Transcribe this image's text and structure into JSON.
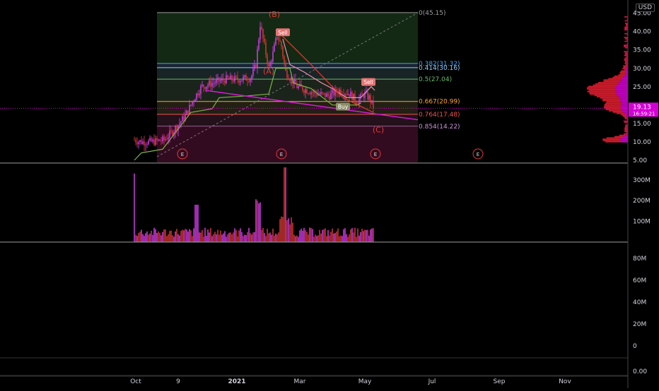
{
  "currency": "USD",
  "colors": {
    "bg": "#000000",
    "up": "#e040fb",
    "down": "#e53935",
    "fib_line": "#555555",
    "price_tag": "#d600d6",
    "volume_profile_red": "#cc1a2a",
    "volume_profile_magenta": "#c000c0"
  },
  "chart_data": [
    {
      "type": "candlestick",
      "x_labels": [
        "Oct",
        "9",
        "2021",
        "Mar",
        "May",
        "Jul",
        "Sep",
        "Nov"
      ],
      "y_ticks": [
        "45.00",
        "40.00",
        "35.00",
        "30.00",
        "25.00",
        "20.00",
        "15.00",
        "10.00",
        "5.00"
      ],
      "y_values": [
        45,
        40,
        35,
        30,
        25,
        20,
        15,
        10,
        5
      ],
      "ylim": [
        5,
        45
      ],
      "last_price": "19.13",
      "last_price_value": 19.13,
      "countdown": "16:59:21",
      "fib_levels": [
        {
          "label": "0(45.15)",
          "value": 45.15,
          "color": "#9e9e9e"
        },
        {
          "label": "0.382(31.32)",
          "value": 31.32,
          "color": "#42a5f5"
        },
        {
          "label": "0.414(30.16)",
          "value": 30.16,
          "color": "#90caf9"
        },
        {
          "label": "0.5(27.04)",
          "value": 27.04,
          "color": "#66bb6a"
        },
        {
          "label": "0.667(20.99)",
          "value": 20.99,
          "color": "#ffa726"
        },
        {
          "label": "0.764(17.48)",
          "value": 17.48,
          "color": "#ef5350"
        },
        {
          "label": "0.854(14.22)",
          "value": 14.22,
          "color": "#ce93d8"
        }
      ],
      "waves": [
        "(B)",
        "(A)",
        "(C)"
      ],
      "signals": [
        "Sell",
        "Sell",
        "Buy"
      ],
      "earnings_marker": "E"
    },
    {
      "type": "bar",
      "name": "volume",
      "y_ticks": [
        "300M",
        "200M",
        "100M"
      ],
      "y_values": [
        300,
        200,
        100
      ]
    },
    {
      "type": "line",
      "name": "indicator",
      "y_ticks": [
        "80M",
        "60M",
        "40M",
        "20M",
        "0"
      ],
      "y_values": [
        80,
        60,
        40,
        20,
        0
      ],
      "lower_tick": "0.00"
    }
  ]
}
